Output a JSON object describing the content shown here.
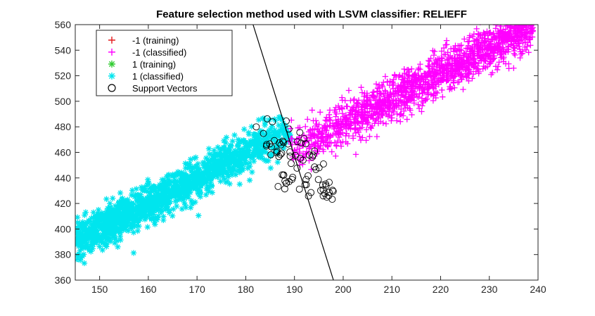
{
  "chart_data": {
    "type": "scatter",
    "title": "Feature selection method used with LSVM classifier: RELIEFF",
    "xlabel": "",
    "ylabel": "",
    "xlim": [
      145,
      240
    ],
    "ylim": [
      360,
      560
    ],
    "xticks": [
      150,
      160,
      170,
      180,
      190,
      200,
      210,
      220,
      230,
      240
    ],
    "yticks": [
      360,
      380,
      400,
      420,
      440,
      460,
      480,
      500,
      520,
      540,
      560
    ],
    "grid": false,
    "legend": {
      "position": "top-left",
      "entries": [
        {
          "label": "-1 (training)",
          "marker": "+",
          "color": "#e41a1c"
        },
        {
          "label": "-1 (classified)",
          "marker": "+",
          "color": "#ff00ff"
        },
        {
          "label": "1 (training)",
          "marker": "*",
          "color": "#33cc33"
        },
        {
          "label": "1 (classified)",
          "marker": "*",
          "color": "#00e5ee"
        },
        {
          "label": "Support Vectors",
          "marker": "o",
          "color": "#000000"
        }
      ]
    },
    "decision_boundary": {
      "x": [
        181.5,
        198.0
      ],
      "y": [
        560,
        360
      ]
    },
    "distribution": {
      "class_pos": {
        "x_range": [
          145,
          193
        ],
        "trend": {
          "slope": 2.0,
          "intercept": 100
        },
        "spread": 13,
        "count": 1600
      },
      "class_neg": {
        "x_range": [
          188,
          239
        ],
        "trend": {
          "slope": 2.0,
          "intercept": 82
        },
        "spread": 14,
        "count": 1600
      },
      "support_vectors_count": 75
    }
  }
}
